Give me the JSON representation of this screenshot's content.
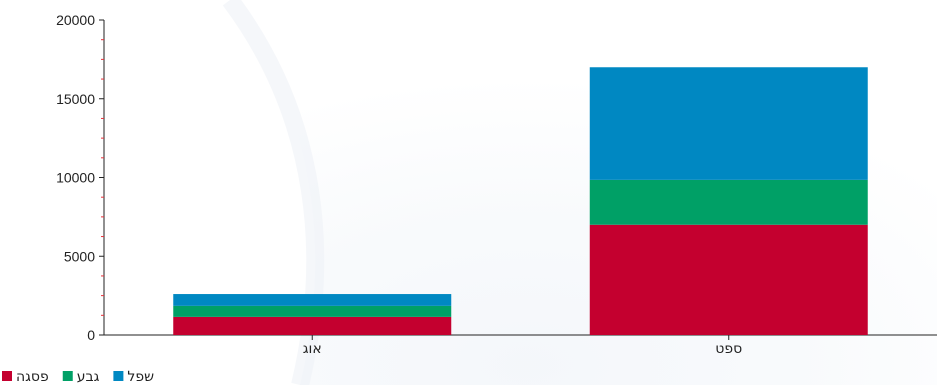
{
  "chart_data": {
    "type": "bar",
    "stacked": true,
    "categories": [
      "אוג",
      "ספט"
    ],
    "series": [
      {
        "name": "פסגה",
        "color": "#c4002f",
        "values": [
          1150,
          7000
        ]
      },
      {
        "name": "גבע",
        "color": "#00a066",
        "values": [
          700,
          2850
        ]
      },
      {
        "name": "שפל",
        "color": "#0088c2",
        "values": [
          750,
          7150
        ]
      }
    ],
    "ylim": [
      0,
      20000
    ],
    "yticks": [
      0,
      5000,
      10000,
      15000,
      20000
    ],
    "yticks_labels": [
      "0",
      "5000",
      "10000",
      "15000",
      "20000"
    ],
    "minor_tick_color": "#e8313a",
    "grid": false,
    "legend_position": "bottom-left",
    "title": "",
    "xlabel": "",
    "ylabel": ""
  }
}
